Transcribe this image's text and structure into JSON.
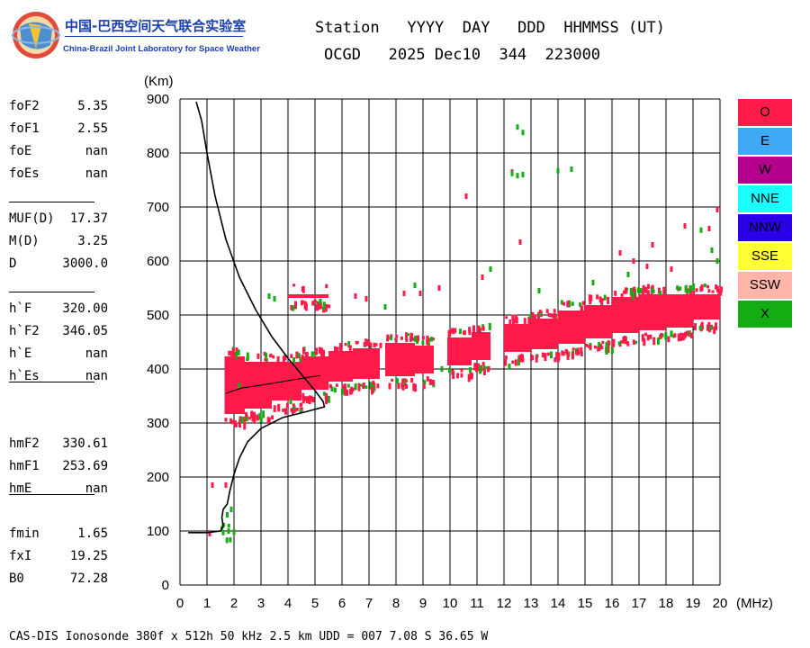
{
  "logo": {
    "title_cn": "中国-巴西空间天气联合实验室",
    "title_en": "China-Brazil Joint Laboratory for Space Weather"
  },
  "header": {
    "line1": "Station   YYYY  DAY   DDD  HHMMSS (UT)",
    "line2": "OCGD   2025 Dec10  344  223000"
  },
  "params": [
    {
      "label": "foF2",
      "value": "5.35"
    },
    {
      "label": "foF1",
      "value": "2.55"
    },
    {
      "label": "foE",
      "value": "nan"
    },
    {
      "label": "foEs",
      "value": "nan"
    },
    {
      "label": "MUF(D)",
      "value": "17.37"
    },
    {
      "label": "M(D)",
      "value": "3.25"
    },
    {
      "label": "D",
      "value": "3000.0"
    },
    {
      "label": "h`F",
      "value": "320.00"
    },
    {
      "label": "h`F2",
      "value": "346.05"
    },
    {
      "label": "h`E",
      "value": "nan"
    },
    {
      "label": "h`Es",
      "value": "nan"
    },
    {
      "label": "hmF2",
      "value": "330.61"
    },
    {
      "label": "hmF1",
      "value": "253.69"
    },
    {
      "label": "hmE",
      "value": "nan"
    },
    {
      "label": "fmin",
      "value": "1.65"
    },
    {
      "label": "fxI",
      "value": "19.25"
    },
    {
      "label": "B0",
      "value": "72.28"
    }
  ],
  "legend": [
    {
      "label": "O",
      "color": "#ff1a4a"
    },
    {
      "label": "E",
      "color": "#3fa9f5"
    },
    {
      "label": "W",
      "color": "#b5008f"
    },
    {
      "label": "NNE",
      "color": "#1affff"
    },
    {
      "label": "NNW",
      "color": "#2a00e8"
    },
    {
      "label": "SSE",
      "color": "#ffff33"
    },
    {
      "label": "SSW",
      "color": "#ffb5a8"
    },
    {
      "label": "X",
      "color": "#13ad13"
    }
  ],
  "footer": "CAS-DIS Ionosonde 380f x 512h 50 kHz 2.5 km UDD = 007 7.08 S 36.65 W",
  "chart_data": {
    "type": "scatter",
    "xlabel": "(MHz)",
    "ylabel": "(Km)",
    "xlim": [
      0,
      20
    ],
    "ylim": [
      0,
      900
    ],
    "x_ticks": [
      0,
      1,
      2,
      3,
      4,
      5,
      6,
      7,
      8,
      9,
      10,
      11,
      12,
      13,
      14,
      15,
      16,
      17,
      18,
      19,
      20
    ],
    "y_ticks": [
      0,
      100,
      200,
      300,
      400,
      500,
      600,
      700,
      800,
      900
    ],
    "grid": true,
    "colors": {
      "o_trace": "#ff1a4a",
      "x_trace": "#13ad13",
      "profile": "#000000"
    },
    "o_trace_bands": [
      {
        "f0": 1.65,
        "f1": 2.4,
        "h0": 310,
        "h1": 430
      },
      {
        "f0": 2.4,
        "f1": 3.4,
        "h0": 320,
        "h1": 420
      },
      {
        "f0": 3.4,
        "f1": 4.5,
        "h0": 335,
        "h1": 420
      },
      {
        "f0": 4.5,
        "f1": 5.5,
        "h0": 355,
        "h1": 430
      },
      {
        "f0": 5.5,
        "f1": 6.4,
        "h0": 370,
        "h1": 440
      },
      {
        "f0": 6.4,
        "f1": 7.4,
        "h0": 375,
        "h1": 445
      },
      {
        "f0": 7.6,
        "f1": 8.7,
        "h0": 380,
        "h1": 455
      },
      {
        "f0": 8.7,
        "f1": 9.4,
        "h0": 385,
        "h1": 450
      },
      {
        "f0": 9.9,
        "f1": 10.8,
        "h0": 400,
        "h1": 465
      },
      {
        "f0": 10.8,
        "f1": 11.5,
        "h0": 410,
        "h1": 475
      },
      {
        "f0": 12.0,
        "f1": 13.0,
        "h0": 425,
        "h1": 490
      },
      {
        "f0": 13.0,
        "f1": 14.0,
        "h0": 430,
        "h1": 500
      },
      {
        "f0": 14.0,
        "f1": 15.0,
        "h0": 440,
        "h1": 515
      },
      {
        "f0": 15.0,
        "f1": 16.0,
        "h0": 450,
        "h1": 525
      },
      {
        "f0": 16.0,
        "f1": 17.0,
        "h0": 460,
        "h1": 540
      },
      {
        "f0": 17.0,
        "f1": 18.0,
        "h0": 465,
        "h1": 545
      },
      {
        "f0": 18.0,
        "f1": 19.0,
        "h0": 470,
        "h1": 545
      },
      {
        "f0": 19.0,
        "f1": 20.0,
        "h0": 485,
        "h1": 545
      }
    ],
    "o_trace_upper_band": {
      "f0": 4.0,
      "f1": 5.5,
      "h0": 525,
      "h1": 545
    },
    "o_points": [
      [
        1.2,
        185
      ],
      [
        1.7,
        185
      ],
      [
        1.1,
        95
      ],
      [
        10.6,
        720
      ],
      [
        12.3,
        765
      ],
      [
        12.6,
        635
      ],
      [
        19.9,
        695
      ],
      [
        19.6,
        660
      ],
      [
        18.7,
        665
      ],
      [
        17.5,
        630
      ],
      [
        6.5,
        535
      ],
      [
        6.9,
        530
      ],
      [
        8.3,
        540
      ],
      [
        8.9,
        540
      ],
      [
        9.6,
        550
      ],
      [
        16.3,
        615
      ],
      [
        16.8,
        600
      ],
      [
        17.3,
        590
      ],
      [
        18.2,
        585
      ],
      [
        11.2,
        570
      ]
    ],
    "x_points": [
      [
        12.5,
        848
      ],
      [
        12.7,
        838
      ],
      [
        12.3,
        762
      ],
      [
        12.7,
        760
      ],
      [
        12.5,
        758
      ],
      [
        14.0,
        767
      ],
      [
        14.5,
        770
      ],
      [
        19.3,
        657
      ],
      [
        19.7,
        620
      ],
      [
        19.9,
        600
      ],
      [
        3.3,
        535
      ],
      [
        3.5,
        530
      ],
      [
        5.2,
        525
      ],
      [
        7.6,
        515
      ],
      [
        8.7,
        555
      ],
      [
        11.5,
        585
      ],
      [
        13.3,
        545
      ],
      [
        15.3,
        560
      ],
      [
        16.6,
        575
      ],
      [
        17.5,
        545
      ],
      [
        1.9,
        140
      ],
      [
        1.8,
        100
      ],
      [
        1.6,
        97
      ],
      [
        2.0,
        98
      ],
      [
        1.75,
        130
      ],
      [
        2.2,
        370
      ],
      [
        4.1,
        340
      ],
      [
        9.7,
        400
      ],
      [
        12.2,
        405
      ],
      [
        15.8,
        445
      ]
    ],
    "x_trace_band": {
      "f0": 1.5,
      "f1": 2.0,
      "h0": 92,
      "h1": 103
    },
    "profile_curve": [
      [
        0.6,
        895
      ],
      [
        0.8,
        860
      ],
      [
        1.0,
        800
      ],
      [
        1.3,
        720
      ],
      [
        1.7,
        640
      ],
      [
        2.2,
        570
      ],
      [
        2.8,
        510
      ],
      [
        3.4,
        460
      ],
      [
        4.0,
        420
      ],
      [
        4.5,
        390
      ],
      [
        5.0,
        360
      ],
      [
        5.3,
        340
      ],
      [
        5.35,
        330
      ],
      [
        4.6,
        320
      ],
      [
        3.8,
        310
      ],
      [
        3.0,
        290
      ],
      [
        2.5,
        265
      ],
      [
        2.2,
        235
      ],
      [
        2.0,
        205
      ],
      [
        1.85,
        175
      ],
      [
        1.75,
        150
      ],
      [
        1.6,
        140
      ],
      [
        1.55,
        125
      ],
      [
        1.6,
        110
      ],
      [
        1.5,
        100
      ],
      [
        1.0,
        97
      ],
      [
        0.3,
        97
      ]
    ],
    "trace_line": [
      [
        1.7,
        355
      ],
      [
        2.3,
        365
      ],
      [
        3.0,
        370
      ],
      [
        3.6,
        375
      ],
      [
        4.2,
        380
      ],
      [
        4.8,
        385
      ],
      [
        5.2,
        388
      ]
    ]
  }
}
